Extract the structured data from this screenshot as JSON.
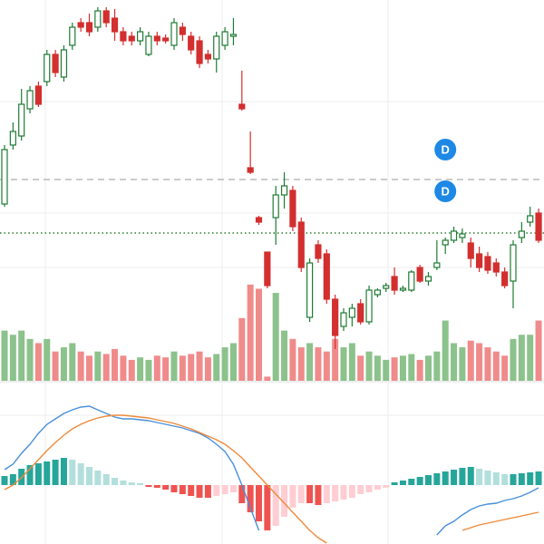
{
  "chart_data": {
    "type": "candlestick",
    "ylim": [
      0,
      390
    ],
    "up_color": "#1e7b34",
    "down_color": "#d32f2f",
    "open": [
      165,
      230,
      240,
      270,
      295,
      300,
      330,
      305,
      340,
      365,
      365,
      360,
      378,
      370,
      355,
      350,
      345,
      330,
      350,
      348,
      340,
      360,
      350,
      345,
      330,
      325,
      340,
      350,
      275,
      205,
      150,
      112,
      150,
      175,
      180,
      145,
      40,
      120,
      110,
      60,
      30,
      40,
      55,
      35,
      65,
      72,
      85,
      70,
      70,
      95,
      80,
      95,
      120,
      125,
      128,
      122,
      110,
      107,
      100,
      90,
      80,
      128,
      145,
      155
    ],
    "high": [
      230,
      255,
      292,
      295,
      300,
      335,
      335,
      340,
      365,
      370,
      375,
      382,
      382,
      380,
      360,
      355,
      360,
      355,
      355,
      352,
      370,
      365,
      355,
      350,
      335,
      355,
      360,
      370,
      312,
      245,
      152,
      112,
      185,
      200,
      185,
      150,
      105,
      125,
      115,
      65,
      50,
      55,
      60,
      75,
      72,
      78,
      95,
      75,
      92,
      98,
      90,
      125,
      128,
      140,
      138,
      128,
      118,
      112,
      105,
      95,
      125,
      145,
      162,
      160
    ],
    "low": [
      162,
      225,
      235,
      265,
      272,
      295,
      305,
      300,
      335,
      355,
      350,
      355,
      360,
      345,
      340,
      340,
      340,
      328,
      340,
      342,
      335,
      345,
      330,
      315,
      320,
      310,
      335,
      340,
      268,
      198,
      142,
      72,
      120,
      160,
      135,
      90,
      35,
      100,
      55,
      5,
      25,
      30,
      32,
      32,
      62,
      68,
      65,
      68,
      68,
      78,
      75,
      92,
      110,
      122,
      122,
      95,
      90,
      88,
      85,
      72,
      50,
      122,
      140,
      122
    ],
    "close": [
      225,
      245,
      275,
      290,
      275,
      330,
      310,
      335,
      360,
      360,
      355,
      378,
      365,
      355,
      345,
      345,
      355,
      350,
      345,
      345,
      365,
      352,
      335,
      320,
      325,
      350,
      355,
      352,
      270,
      200,
      145,
      75,
      175,
      185,
      140,
      95,
      100,
      105,
      60,
      20,
      45,
      50,
      35,
      70,
      70,
      75,
      70,
      72,
      90,
      80,
      85,
      100,
      125,
      135,
      132,
      105,
      95,
      92,
      90,
      75,
      120,
      135,
      152,
      125
    ],
    "volume": {
      "ylim": [
        0,
        130
      ],
      "up_color": "#8cc28c",
      "down_color": "#f08b8b",
      "values": [
        60,
        55,
        60,
        50,
        45,
        50,
        35,
        40,
        45,
        35,
        30,
        35,
        32,
        38,
        30,
        25,
        28,
        25,
        30,
        28,
        35,
        30,
        32,
        35,
        28,
        32,
        40,
        45,
        75,
        115,
        110,
        5,
        105,
        60,
        50,
        40,
        45,
        40,
        35,
        50,
        40,
        45,
        30,
        35,
        30,
        25,
        28,
        30,
        32,
        25,
        30,
        35,
        72,
        45,
        40,
        48,
        45,
        40,
        35,
        30,
        50,
        55,
        55,
        72
      ]
    },
    "macd": {
      "ylim": [
        -65,
        95
      ],
      "histogram": [
        10,
        12,
        18,
        22,
        24,
        26,
        28,
        30,
        28,
        24,
        20,
        16,
        12,
        8,
        5,
        3,
        2,
        -2,
        -3,
        -5,
        -8,
        -10,
        -12,
        -14,
        -14,
        -12,
        -10,
        -8,
        -20,
        -30,
        -40,
        -50,
        -45,
        -35,
        -25,
        -20,
        -20,
        -22,
        -20,
        -18,
        -16,
        -14,
        -10,
        -8,
        -5,
        -3,
        3,
        5,
        7,
        9,
        11,
        13,
        15,
        17,
        19,
        20,
        18,
        16,
        14,
        12,
        12,
        13,
        14,
        15
      ],
      "histogram_colors": {
        "up_rising": "#26a69a",
        "up_falling": "#b2dfdb",
        "down_falling": "#ef5350",
        "down_rising": "#ffcdd2"
      },
      "series": [
        {
          "color": "#4a90d9",
          "values": [
            17,
            23,
            35,
            45,
            57,
            67,
            73,
            79,
            83,
            86,
            87,
            83,
            79,
            75,
            73,
            73,
            72,
            71,
            69,
            67,
            65,
            63,
            60,
            57,
            52,
            45,
            37,
            23,
            0,
            -25,
            -50,
            null,
            null,
            null,
            null,
            null,
            null,
            null,
            null,
            null,
            null,
            null,
            null,
            null,
            null,
            null,
            null,
            null,
            null,
            null,
            null,
            -55,
            -45,
            -40,
            -33,
            -27,
            -23,
            -21,
            -20,
            -17,
            -15,
            -12,
            -8,
            -3
          ]
        },
        {
          "color": "#ef8a3a",
          "values": [
            -5,
            0,
            8,
            18,
            28,
            38,
            47,
            55,
            62,
            67,
            71,
            74,
            76,
            77,
            77,
            76,
            75,
            74,
            72,
            70,
            68,
            65,
            62,
            58,
            54,
            50,
            45,
            38,
            30,
            20,
            10,
            0,
            -10,
            -20,
            -30,
            -40,
            -50,
            -58,
            -64,
            null,
            null,
            null,
            null,
            null,
            null,
            null,
            null,
            null,
            null,
            null,
            null,
            null,
            null,
            null,
            -50,
            -47,
            -44,
            -42,
            -40,
            -38,
            -36,
            -34,
            -32,
            -30
          ]
        }
      ]
    },
    "price_lines": [
      {
        "value": 192,
        "color": "#999999",
        "style": "dashed"
      },
      {
        "value": 133,
        "color": "#2e7d32",
        "style": "dotted"
      }
    ],
    "markers": [
      {
        "text": "D",
        "index": 52,
        "value": 225
      },
      {
        "text": "D",
        "index": 52,
        "value": 179
      }
    ]
  }
}
